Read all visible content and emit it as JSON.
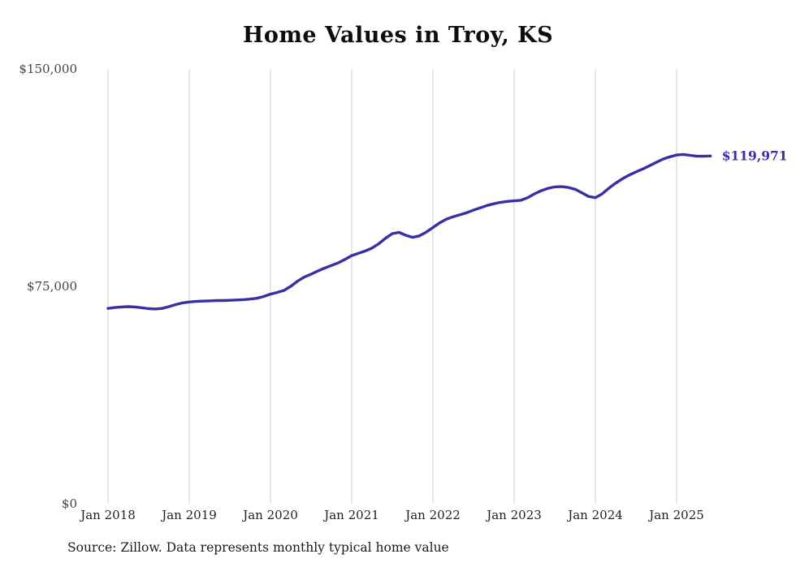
{
  "chart_data": {
    "type": "line",
    "title": "Home Values in Troy, KS",
    "source": "Source: Zillow. Data represents monthly typical home value",
    "series_name": "Monthly typical home value",
    "start_month": "Jan 2018",
    "points_per_year": 12,
    "x_tick_labels": [
      "Jan 2018",
      "Jan 2019",
      "Jan 2020",
      "Jan 2021",
      "Jan 2022",
      "Jan 2023",
      "Jan 2024",
      "Jan 2025"
    ],
    "y_ticks": [
      {
        "value": 0,
        "label": "$0"
      },
      {
        "value": 75000,
        "label": "$75,000"
      },
      {
        "value": 150000,
        "label": "$150,000"
      }
    ],
    "ylim": [
      0,
      150000
    ],
    "grid": "vertical-only",
    "legend": "none",
    "line_color": "#3730a3",
    "grid_color": "#cccccc",
    "end_label": "$119,971",
    "last_value": 119971,
    "values": [
      67400,
      67700,
      67900,
      68000,
      67900,
      67600,
      67300,
      67200,
      67400,
      68000,
      68700,
      69300,
      69600,
      69800,
      69900,
      70000,
      70100,
      70100,
      70200,
      70300,
      70400,
      70600,
      70900,
      71500,
      72300,
      72900,
      73600,
      75000,
      76800,
      78200,
      79200,
      80300,
      81300,
      82200,
      83100,
      84300,
      85600,
      86400,
      87200,
      88200,
      89700,
      91600,
      93200,
      93600,
      92600,
      91900,
      92400,
      93700,
      95300,
      96900,
      98200,
      99000,
      99700,
      100400,
      101300,
      102100,
      102900,
      103500,
      104000,
      104300,
      104500,
      104700,
      105600,
      106900,
      108000,
      108800,
      109300,
      109400,
      109100,
      108500,
      107300,
      106000,
      105600,
      106900,
      108900,
      110600,
      112100,
      113400,
      114500,
      115500,
      116600,
      117800,
      118900,
      119700,
      120300,
      120500,
      120200,
      119900,
      119900,
      119971
    ]
  }
}
